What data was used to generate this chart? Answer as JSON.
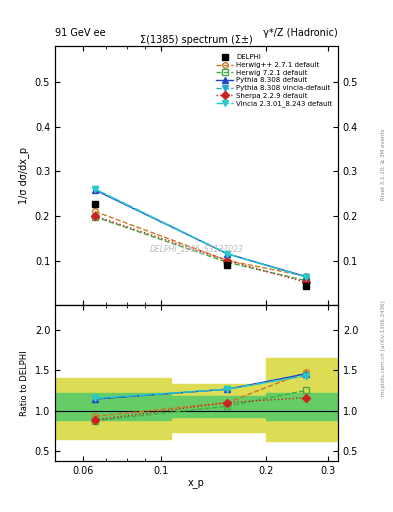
{
  "title_top_left": "91 GeV ee",
  "title_top_right": "γ*/Z (Hadronic)",
  "plot_title": "Σ(1385) spectrum (Σ±)",
  "ylabel_main": "1/σ dσ/dx_p",
  "ylabel_ratio": "Ratio to DELPHI",
  "xlabel": "x_p",
  "watermark": "DELPHI_1995_S3137023",
  "right_label": "Rivet 3.1.10, ≥ 3M events",
  "right_label2": "mcplots.cern.ch [arXiv:1306.3436]",
  "xlim": [
    0.05,
    0.32
  ],
  "ylim_main": [
    0.0,
    0.58
  ],
  "ylim_ratio": [
    0.38,
    2.3
  ],
  "yticks_main": [
    0.1,
    0.2,
    0.3,
    0.4,
    0.5
  ],
  "yticks_ratio": [
    0.5,
    1.0,
    1.5,
    2.0
  ],
  "data_x": [
    0.065,
    0.155,
    0.26
  ],
  "data_y": [
    0.226,
    0.091,
    0.044
  ],
  "data_label": "DELPHI",
  "data_color": "#000000",
  "data_marker": "s",
  "series": [
    {
      "label": "Herwig++ 2.7.1 default",
      "x": [
        0.065,
        0.155,
        0.26
      ],
      "y": [
        0.21,
        0.1,
        0.065
      ],
      "color": "#cc7722",
      "linestyle": "--",
      "marker": "o",
      "markerfacecolor": "none"
    },
    {
      "label": "Herwig 7.2.1 default",
      "x": [
        0.065,
        0.155,
        0.26
      ],
      "y": [
        0.198,
        0.096,
        0.055
      ],
      "color": "#44aa44",
      "linestyle": "--",
      "marker": "s",
      "markerfacecolor": "none"
    },
    {
      "label": "Pythia 8.308 default",
      "x": [
        0.065,
        0.155,
        0.26
      ],
      "y": [
        0.258,
        0.115,
        0.064
      ],
      "color": "#2244cc",
      "linestyle": "-",
      "marker": "^",
      "markerfacecolor": "#2244cc"
    },
    {
      "label": "Pythia 8.308 vincia-default",
      "x": [
        0.065,
        0.155,
        0.26
      ],
      "y": [
        0.26,
        0.115,
        0.063
      ],
      "color": "#22aacc",
      "linestyle": "--",
      "marker": "v",
      "markerfacecolor": "#22aacc"
    },
    {
      "label": "Sherpa 2.2.9 default",
      "x": [
        0.065,
        0.155,
        0.26
      ],
      "y": [
        0.2,
        0.1,
        0.051
      ],
      "color": "#cc2222",
      "linestyle": ":",
      "marker": "D",
      "markerfacecolor": "#cc2222"
    },
    {
      "label": "Vincia 2.3.01_8.243 default",
      "x": [
        0.065,
        0.155,
        0.26
      ],
      "y": [
        0.26,
        0.115,
        0.063
      ],
      "color": "#22cccc",
      "linestyle": "-.",
      "marker": "v",
      "markerfacecolor": "#22cccc"
    }
  ],
  "ratio_series": [
    {
      "label": "Herwig++ 2.7.1 default",
      "x": [
        0.065,
        0.155,
        0.26
      ],
      "y": [
        0.929,
        1.099,
        1.477
      ],
      "color": "#cc7722",
      "linestyle": "--",
      "marker": "o",
      "markerfacecolor": "none"
    },
    {
      "label": "Herwig 7.2.1 default",
      "x": [
        0.065,
        0.155,
        0.26
      ],
      "y": [
        0.876,
        1.055,
        1.25
      ],
      "color": "#44aa44",
      "linestyle": "--",
      "marker": "s",
      "markerfacecolor": "none"
    },
    {
      "label": "Pythia 8.308 default",
      "x": [
        0.065,
        0.155,
        0.26
      ],
      "y": [
        1.142,
        1.264,
        1.455
      ],
      "color": "#2244cc",
      "linestyle": "-",
      "marker": "^",
      "markerfacecolor": "#2244cc"
    },
    {
      "label": "Pythia 8.308 vincia-default",
      "x": [
        0.065,
        0.155,
        0.26
      ],
      "y": [
        1.15,
        1.264,
        1.432
      ],
      "color": "#22aacc",
      "linestyle": "--",
      "marker": "v",
      "markerfacecolor": "#22aacc"
    },
    {
      "label": "Sherpa 2.2.9 default",
      "x": [
        0.065,
        0.155,
        0.26
      ],
      "y": [
        0.885,
        1.099,
        1.159
      ],
      "color": "#cc2222",
      "linestyle": ":",
      "marker": "D",
      "markerfacecolor": "#cc2222"
    },
    {
      "label": "Vincia 2.3.01_8.243 default",
      "x": [
        0.065,
        0.155,
        0.26
      ],
      "y": [
        1.15,
        1.264,
        1.432
      ],
      "color": "#22cccc",
      "linestyle": "-.",
      "marker": "v",
      "markerfacecolor": "#22cccc"
    }
  ],
  "band_color_green": "#66cc66",
  "band_color_yellow": "#dddd55",
  "background_color": "#ffffff"
}
